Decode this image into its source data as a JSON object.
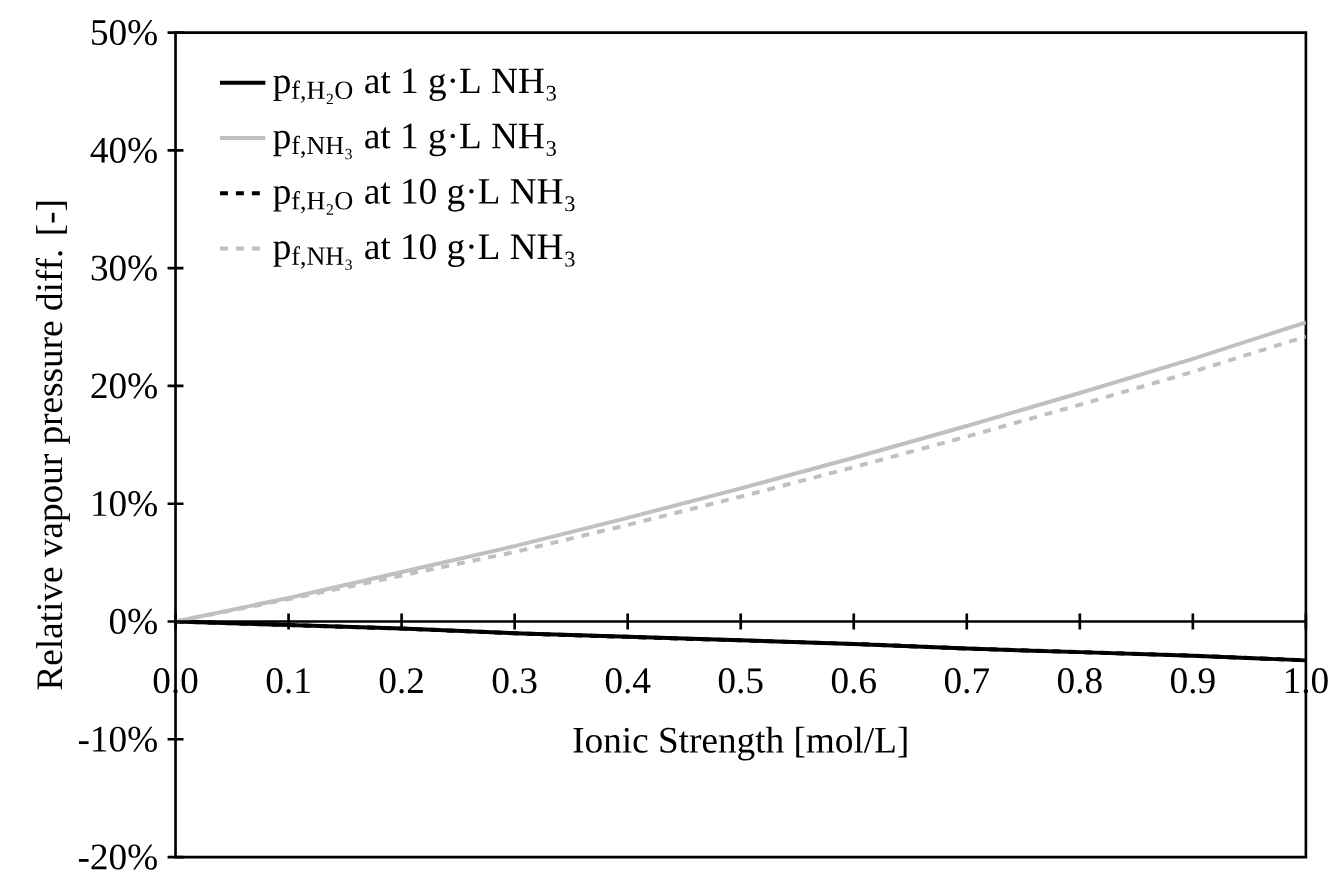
{
  "chart_data": {
    "type": "line",
    "xlabel": "Ionic Strength [mol/L]",
    "ylabel": "Relative vapour pressure diff. [-]",
    "x": [
      0,
      0.1,
      0.2,
      0.3,
      0.4,
      0.5,
      0.6,
      0.7,
      0.8,
      0.9,
      1.0
    ],
    "series": [
      {
        "name": "p$_{f,H₂O}$ at 1 g·L NH₃",
        "color": "#000000",
        "line_style": "solid",
        "values": [
          0,
          -0.3,
          -0.6,
          -1.0,
          -1.3,
          -1.6,
          -1.9,
          -2.3,
          -2.6,
          -2.9,
          -3.3
        ]
      },
      {
        "name": "p$_{f,NH₃}$ at 1 g·L NH₃",
        "color": "#c0c0c0",
        "line_style": "solid",
        "values": [
          0,
          2.0,
          4.2,
          6.4,
          8.8,
          11.3,
          13.9,
          16.6,
          19.4,
          22.3,
          25.4
        ]
      },
      {
        "name": "p$_{f,H₂O}$ at 10 g·L NH₃",
        "color": "#000000",
        "line_style": "dashed",
        "values": [
          0,
          -0.3,
          -0.6,
          -1.0,
          -1.3,
          -1.6,
          -1.9,
          -2.3,
          -2.6,
          -2.9,
          -3.3
        ]
      },
      {
        "name": "p$_{f,NH₃}$ at 10 g·L NH₃",
        "color": "#c0c0c0",
        "line_style": "dashed",
        "values": [
          0,
          1.9,
          3.9,
          5.9,
          8.2,
          10.6,
          13.1,
          15.7,
          18.4,
          21.2,
          24.2
        ]
      }
    ],
    "xlim": [
      0,
      1.0
    ],
    "ylim": [
      -20,
      50
    ],
    "xticks": [
      {
        "value": 0,
        "label": "0.0"
      },
      0.1,
      0.2,
      0.3,
      0.4,
      0.5,
      0.6,
      0.7,
      0.8,
      0.9,
      {
        "value": 1.0,
        "label": "1.0"
      }
    ],
    "yticks": [
      {
        "value": -20,
        "label": "-20%"
      },
      {
        "value": -10,
        "label": "-10%"
      },
      {
        "value": 0,
        "label": "0%"
      },
      {
        "value": 10,
        "label": "10%"
      },
      {
        "value": 20,
        "label": "20%"
      },
      {
        "value": 30,
        "label": "30%"
      },
      {
        "value": 40,
        "label": "40%"
      },
      {
        "value": 50,
        "label": "50%"
      }
    ],
    "legend": "top left",
    "marker": "none"
  }
}
